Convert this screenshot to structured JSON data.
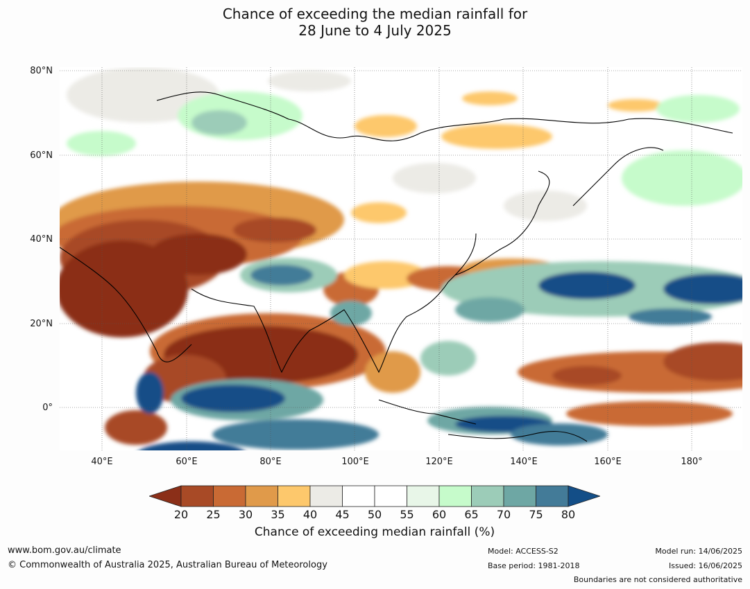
{
  "title": {
    "line1": "Chance of exceeding the median rainfall for",
    "line2": "28 June to 4 July 2025"
  },
  "map": {
    "lat_labels": [
      "80°N",
      "60°N",
      "40°N",
      "20°N",
      "0°"
    ],
    "lon_labels": [
      "40°E",
      "60°E",
      "80°E",
      "100°E",
      "120°E",
      "140°E",
      "160°E",
      "180°"
    ]
  },
  "colorbar": {
    "ticks": [
      "20",
      "25",
      "30",
      "35",
      "40",
      "45",
      "50",
      "55",
      "60",
      "65",
      "70",
      "75",
      "80"
    ],
    "colors": [
      "#8b2f18",
      "#a84a26",
      "#c96a34",
      "#e09a4a",
      "#fdc86c",
      "#ecebe6",
      "#ffffff",
      "#ffffff",
      "#e8f6e8",
      "#c6fbcb",
      "#9cccb8",
      "#6ea7a4",
      "#437b98",
      "#134e87"
    ],
    "label": "Chance of exceeding median rainfall (%)"
  },
  "footer": {
    "website": "www.bom.gov.au/climate",
    "copyright": "© Commonwealth of Australia 2025, Australian Bureau of Meteorology",
    "model": "Model: ACCESS-S2",
    "base_period": "Base period: 1981-2018",
    "model_run": "Model run: 14/06/2025",
    "issued": "Issued: 16/06/2025",
    "disclaimer": "Boundaries are not considered authoritative"
  }
}
